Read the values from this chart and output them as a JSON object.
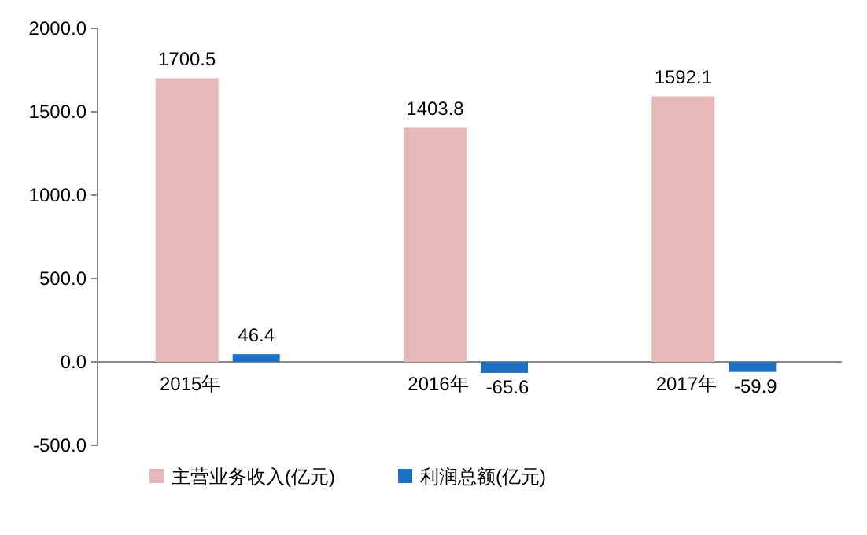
{
  "chart_data": {
    "type": "bar",
    "categories": [
      "2015年",
      "2016年",
      "2017年"
    ],
    "series": [
      {
        "name": "主营业务收入(亿元)",
        "color": "#e6b9b8",
        "values": [
          1700.5,
          1403.8,
          1592.1
        ]
      },
      {
        "name": "利润总额(亿元)",
        "color": "#1f6fc5",
        "values": [
          46.4,
          -65.6,
          -59.9
        ]
      }
    ],
    "ylim": [
      -500,
      2000
    ],
    "yticks": [
      {
        "value": -500,
        "label": "-500.0"
      },
      {
        "value": 0,
        "label": "0.0"
      },
      {
        "value": 500,
        "label": "500.0"
      },
      {
        "value": 1000,
        "label": "1000.0"
      },
      {
        "value": 1500,
        "label": "1500.0"
      },
      {
        "value": 2000,
        "label": "2000.0"
      }
    ],
    "data_labels": true,
    "legend": "bottom",
    "grid": false
  }
}
